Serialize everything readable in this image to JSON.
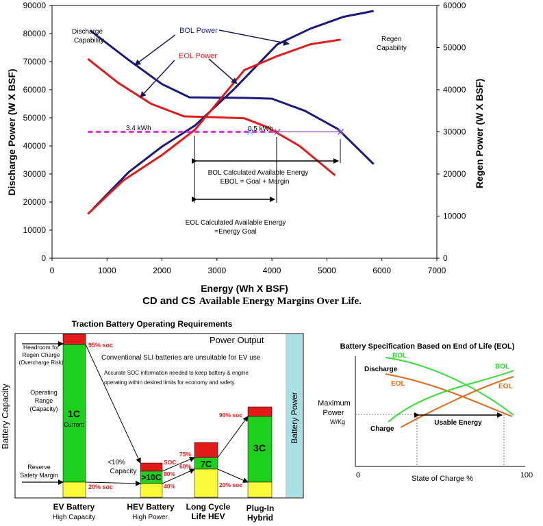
{
  "chart_data": [
    {
      "type": "line",
      "xlabel": "Energy (Wh X BSF)",
      "ylabel": "Discharge Power (W X BSF)",
      "y2label": "Regen  Power (W X BSF)",
      "xlim": [
        0,
        7000
      ],
      "ylim": [
        0,
        90000
      ],
      "y2lim": [
        0,
        60000
      ],
      "xticks": [
        "0",
        "1000",
        "2000",
        "3000",
        "4000",
        "5000",
        "6000",
        "7000"
      ],
      "yticks": [
        "0",
        "10000",
        "20000",
        "30000",
        "40000",
        "50000",
        "60000",
        "70000",
        "80000",
        "90000"
      ],
      "y2ticks": [
        "0",
        "10000",
        "20000",
        "30000",
        "40000",
        "50000",
        "60000"
      ],
      "grid": false,
      "series": [
        {
          "name": "BOL Discharge",
          "color": "#1a1a7a",
          "x": [
            700,
            1400,
            2000,
            2500,
            3000,
            3500,
            4000,
            4600,
            5200,
            5850
          ],
          "y": [
            81000,
            70500,
            62000,
            57300,
            57200,
            57100,
            56800,
            52500,
            46000,
            33500
          ]
        },
        {
          "name": "EOL Discharge",
          "color": "#e01b1b",
          "x": [
            650,
            1200,
            1800,
            2400,
            3000,
            3500,
            3900,
            4500,
            5150
          ],
          "y": [
            71000,
            62500,
            55000,
            50500,
            50200,
            49800,
            46800,
            40000,
            29500
          ]
        },
        {
          "name": "BOL Regen",
          "color": "#1a1a7a",
          "x": [
            750,
            1400,
            2000,
            2600,
            3300,
            4100,
            4700,
            5300,
            5850
          ],
          "y": [
            11800,
            20500,
            26500,
            31500,
            40000,
            50800,
            54500,
            57300,
            58700
          ]
        },
        {
          "name": "EOL Regen",
          "color": "#e01b1b",
          "x": [
            650,
            1300,
            2000,
            2600,
            3500,
            4100,
            4700,
            5250
          ],
          "y": [
            10500,
            18500,
            24500,
            30500,
            44700,
            48000,
            50800,
            51900
          ]
        }
      ],
      "goal_line": {
        "name": "Power Goal",
        "color": "#e033e0",
        "x": [
          650,
          4100
        ],
        "y": 45000
      },
      "margin_line": {
        "color": "#8a4fbf",
        "x": [
          4100,
          5250
        ],
        "y": 45000
      },
      "markers": [
        {
          "x": 3600,
          "y": 45000
        },
        {
          "x": 4100,
          "y": 45000
        },
        {
          "x": 5250,
          "y": 45000
        }
      ],
      "annotations": {
        "discharge_capability": [
          "Discharge",
          "Capability"
        ],
        "regen_capability": [
          "Regen",
          "Capability"
        ],
        "bol_power": "BOL Power",
        "eol_power": "EOL Power",
        "kwh_3_4": "3.4 kWh",
        "kwh_0_5": "0.5 kWh",
        "bol_calc": [
          "BOL Calculated Available Energy",
          "EBOL = Goal + Margin"
        ],
        "eol_calc": [
          "EOL Calculated Available Energy",
          "=Energy Goal"
        ]
      }
    },
    {
      "type": "bar",
      "title": "Traction Battery Operating Requirements",
      "ylabel": "Battery Capacity",
      "right_label": "Battery Power",
      "power_output": "Power Output",
      "notes": [
        "Conventional SLI batteries are unsuitable for EV use",
        "Accurate SOC information needed to keep battery & engine",
        "operating within desired limits for economy and safety."
      ],
      "side_labels": {
        "headroom": [
          "Headroom for",
          "Regen Charge",
          "(Overcharge Risk)"
        ],
        "operating": [
          "Operating",
          "Range",
          "(Capacity)"
        ],
        "reserve": [
          "Reserve",
          "Safety Margin"
        ]
      },
      "categories": [
        {
          "name": "EV Battery",
          "sub": "High Capacity",
          "rate": "1C",
          "rate_sub": "Current",
          "soc_top": "95% soc",
          "soc_bottom": "20% soc"
        },
        {
          "name": "HEV Battery",
          "sub": "High Power",
          "rate": ">10C",
          "soc_top": "SOC",
          "soc_mid": "80%",
          "soc_bottom": "40%",
          "note": [
            "<10%",
            "Capacity"
          ]
        },
        {
          "name": "Long Cycle",
          "name2": "Life HEV",
          "rate": "7C",
          "soc_top": "75%",
          "soc_bottom": "60%"
        },
        {
          "name": "Plug-In",
          "name2": "Hybrid",
          "rate": "3C",
          "soc_top": "90% soc",
          "soc_bottom": "20% soc"
        }
      ],
      "colors": {
        "red": "#e31a1a",
        "green": "#1ed01e",
        "yellow": "#fbfb3c",
        "power_bar": "#a9dfe3"
      }
    },
    {
      "type": "line",
      "title": "Battery Specification Based on End of Life (EOL)",
      "xlabel": "State of Charge %",
      "ylabel": [
        "Maximum",
        "Power",
        "W/Kg"
      ],
      "xlim": [
        0,
        100
      ],
      "xticks": [
        "0",
        "100"
      ],
      "series": [
        {
          "name": "BOL Discharge",
          "color": "#33e033",
          "label": "BOL"
        },
        {
          "name": "EOL Discharge",
          "color": "#e06a1a",
          "label": "EOL"
        },
        {
          "name": "BOL Charge",
          "color": "#33e033",
          "label": "BOL"
        },
        {
          "name": "EOL Charge",
          "color": "#e06a1a",
          "label": "EOL"
        }
      ],
      "labels": {
        "discharge": "Discharge",
        "charge": "Charge",
        "usable": "Usable Energy"
      }
    }
  ],
  "caption": {
    "bold": "CD and CS",
    "rest": "Available Energy Margins Over Life."
  }
}
